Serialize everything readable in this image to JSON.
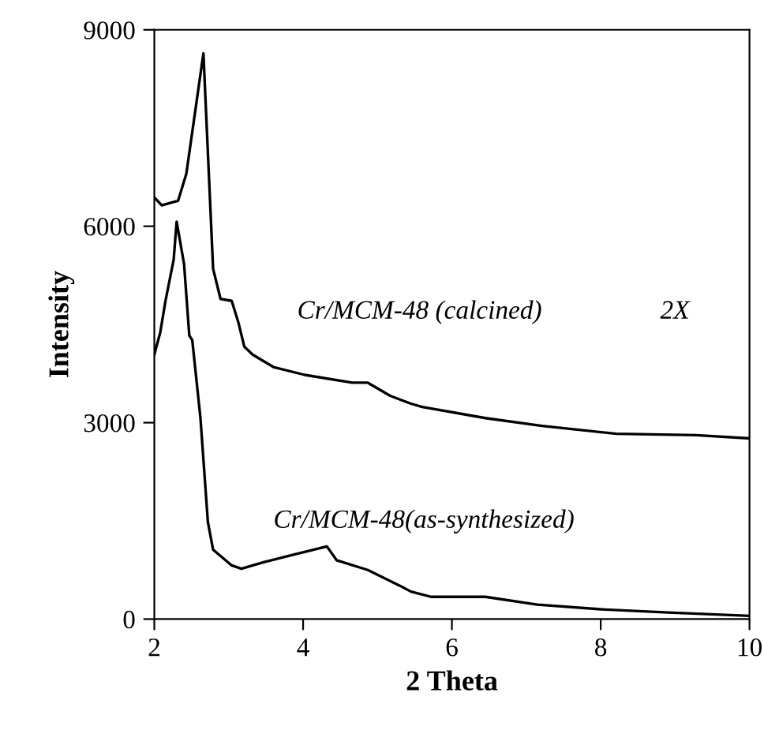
{
  "chart_data": {
    "type": "line",
    "xlabel": "2 Theta",
    "ylabel": "Intensity",
    "xlim": [
      2,
      10
    ],
    "ylim": [
      0,
      9000
    ],
    "xticks": [
      2,
      4,
      6,
      8,
      10
    ],
    "yticks": [
      0,
      3000,
      6000,
      9000
    ],
    "grid": false,
    "legend": false,
    "marker": "none",
    "line_style": "solid",
    "annotations": [
      "2X"
    ],
    "series": [
      {
        "name": "Cr/MCM-48 (calcined)",
        "color": "#000000",
        "x": [
          2,
          2.1,
          2.32,
          2.43,
          2.53,
          2.66,
          2.79,
          2.89,
          3.04,
          3.13,
          3.21,
          3.32,
          3.6,
          4.02,
          4.66,
          4.87,
          5.17,
          5.45,
          5.6,
          6.45,
          7.21,
          8.21,
          9.28,
          10
        ],
        "values": [
          6440,
          6320,
          6390,
          6800,
          7600,
          8640,
          5350,
          4890,
          4860,
          4530,
          4160,
          4040,
          3850,
          3730,
          3610,
          3610,
          3410,
          3290,
          3240,
          3070,
          2950,
          2830,
          2810,
          2760
        ]
      },
      {
        "name": "Cr/MCM-48(as-synthesized)",
        "color": "#000000",
        "x": [
          2,
          2.08,
          2.15,
          2.26,
          2.3,
          2.4,
          2.47,
          2.51,
          2.62,
          2.72,
          2.79,
          3.04,
          3.17,
          3.47,
          3.89,
          4.32,
          4.45,
          4.87,
          5.3,
          5.45,
          5.72,
          6.45,
          7.15,
          8,
          8.91,
          10
        ],
        "values": [
          4040,
          4380,
          4860,
          5490,
          6070,
          5420,
          4330,
          4260,
          3070,
          1480,
          1060,
          820,
          770,
          870,
          990,
          1110,
          900,
          750,
          510,
          420,
          340,
          340,
          220,
          150,
          100,
          50
        ]
      }
    ]
  }
}
